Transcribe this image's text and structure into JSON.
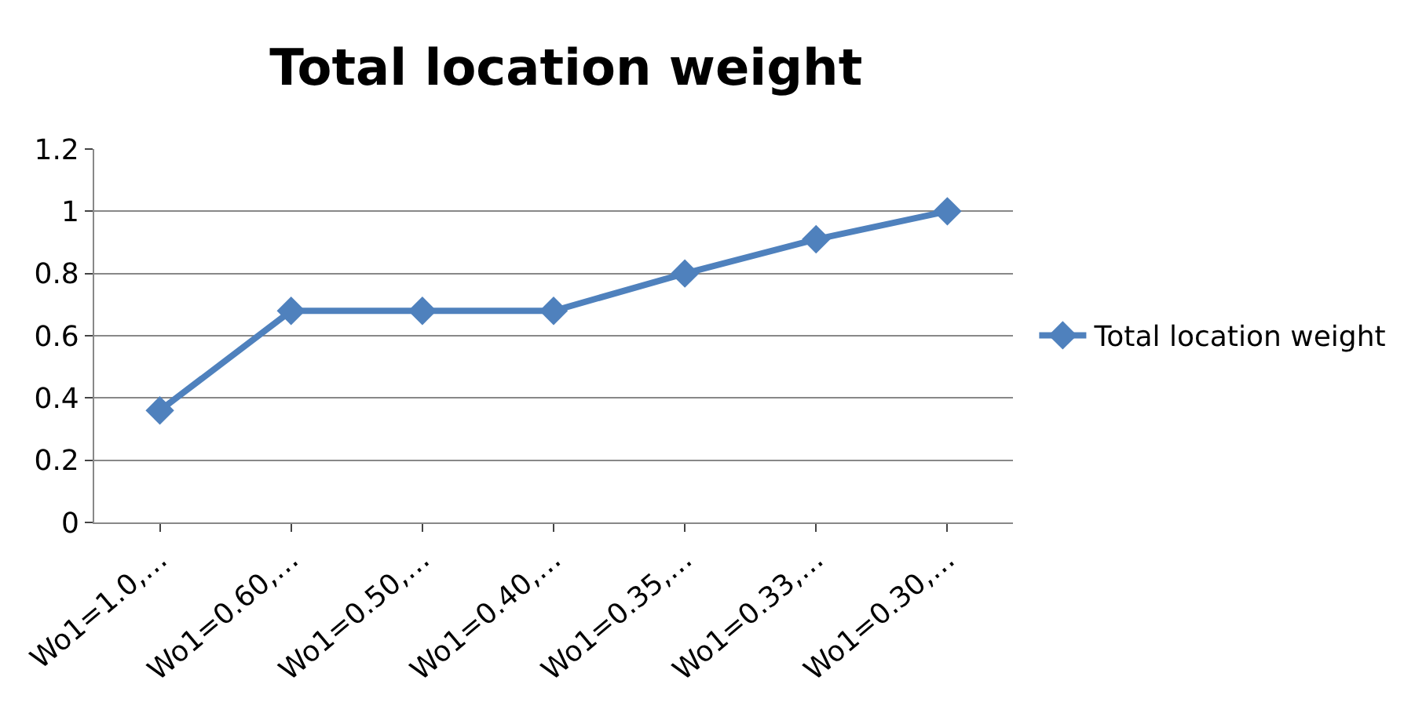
{
  "chart_data": {
    "type": "line",
    "title": "Total location weight",
    "categories": [
      "Wo1=1.0,…",
      "Wo1=0.60,…",
      "Wo1=0.50,…",
      "Wo1=0.40,…",
      "Wo1=0.35,…",
      "Wo1=0.33,…",
      "Wo1=0.30,…"
    ],
    "series": [
      {
        "name": "Total location weight",
        "color": "#4f81bd",
        "values": [
          0.36,
          0.68,
          0.68,
          0.68,
          0.8,
          0.91,
          1.0
        ]
      }
    ],
    "ylim": [
      0,
      1.2
    ],
    "yticks": [
      0,
      0.2,
      0.4,
      0.6,
      0.8,
      1,
      1.2
    ],
    "grid": "y",
    "legend": "right",
    "marker": "diamond",
    "line_style": "solid"
  }
}
